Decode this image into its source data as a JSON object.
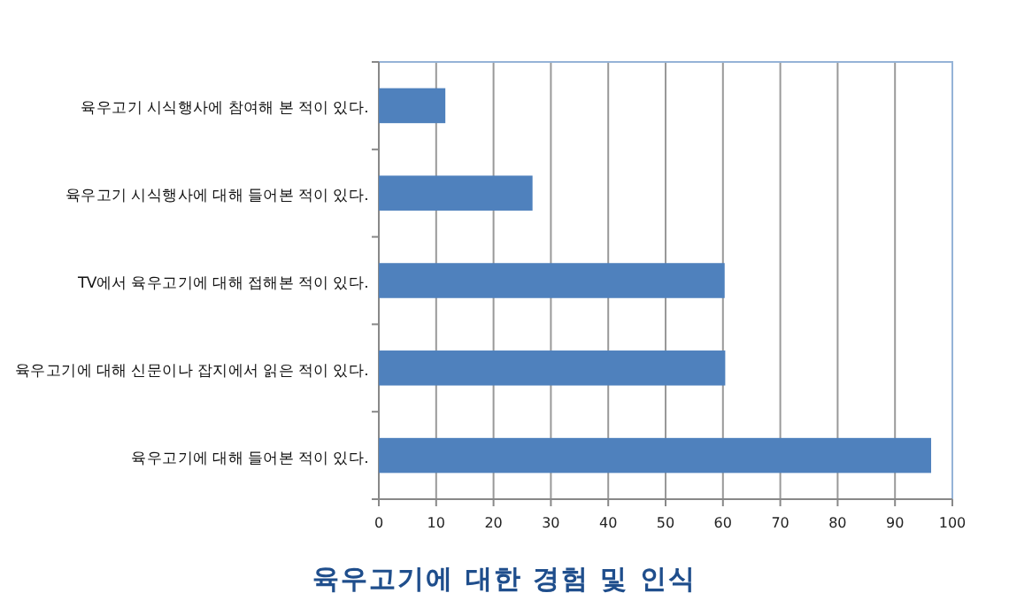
{
  "chart_data": {
    "type": "bar",
    "orientation": "horizontal",
    "title": "육우고기에 대한 경험 및 인식",
    "categories": [
      "육우고기 시식행사에 참여해 본 적이 있다.",
      "육우고기 시식행사에 대해 들어본 적이 있다.",
      "TV에서 육우고기에 대해 접해본 적이 있다.",
      "육우고기에 대해 신문이나 잡지에서 읽은 적이 있다.",
      "육우고기에 대해 들어본 적이 있다."
    ],
    "values": [
      11.6,
      26.8,
      60.3,
      60.4,
      96.3
    ],
    "color": "#4f81bd",
    "xlim": [
      0,
      100
    ],
    "xticks": [
      0,
      10,
      20,
      30,
      40,
      50,
      60,
      70,
      80,
      90,
      100
    ],
    "grid": "x"
  }
}
